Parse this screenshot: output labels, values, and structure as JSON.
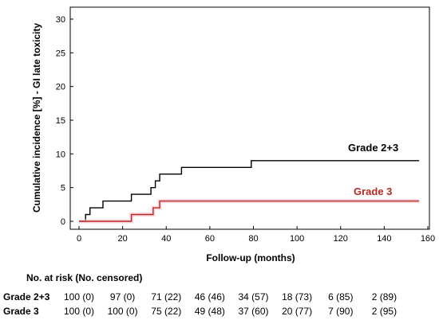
{
  "chart_data": {
    "type": "line",
    "step": true,
    "title": "",
    "xlabel": "Follow-up (months)",
    "ylabel": "Cumulative incidence [%] - GI late toxicity",
    "xlim": [
      0,
      160
    ],
    "ylim": [
      0,
      30
    ],
    "xticks": [
      "0",
      "20",
      "40",
      "60",
      "80",
      "100",
      "120",
      "140",
      "160"
    ],
    "yticks": [
      "0",
      "5",
      "10",
      "15",
      "20",
      "25",
      "30"
    ],
    "grid": false,
    "series": [
      {
        "name": "Grade 2+3",
        "color": "#000000",
        "points": [
          [
            0,
            0
          ],
          [
            3,
            0
          ],
          [
            3,
            1
          ],
          [
            5,
            1
          ],
          [
            5,
            2
          ],
          [
            11,
            2
          ],
          [
            11,
            3
          ],
          [
            24,
            3
          ],
          [
            24,
            4
          ],
          [
            33,
            4
          ],
          [
            33,
            5
          ],
          [
            35,
            5
          ],
          [
            35,
            6
          ],
          [
            37,
            6
          ],
          [
            37,
            7
          ],
          [
            47,
            7
          ],
          [
            47,
            8
          ],
          [
            79,
            8
          ],
          [
            79,
            9
          ],
          [
            156,
            9
          ]
        ]
      },
      {
        "name": "Grade 3",
        "color": "#b52a24",
        "points": [
          [
            0,
            0
          ],
          [
            24,
            0
          ],
          [
            24,
            1
          ],
          [
            34,
            1
          ],
          [
            34,
            2
          ],
          [
            37,
            2
          ],
          [
            37,
            3
          ],
          [
            156,
            3
          ]
        ]
      }
    ]
  },
  "risk_table": {
    "title": "No. at risk (No. censored)",
    "times": [
      0,
      20,
      40,
      60,
      80,
      100,
      120,
      140
    ],
    "rows": [
      {
        "label": "Grade 2+3",
        "values": [
          "100 (0)",
          "97 (0)",
          "71 (22)",
          "46 (46)",
          "34 (57)",
          "18 (73)",
          "6 (85)",
          "2 (89)"
        ]
      },
      {
        "label": "Grade 3",
        "values": [
          "100 (0)",
          "100 (0)",
          "75 (22)",
          "49 (48)",
          "37 (60)",
          "20 (77)",
          "7 (90)",
          "2 (95)"
        ]
      }
    ]
  }
}
